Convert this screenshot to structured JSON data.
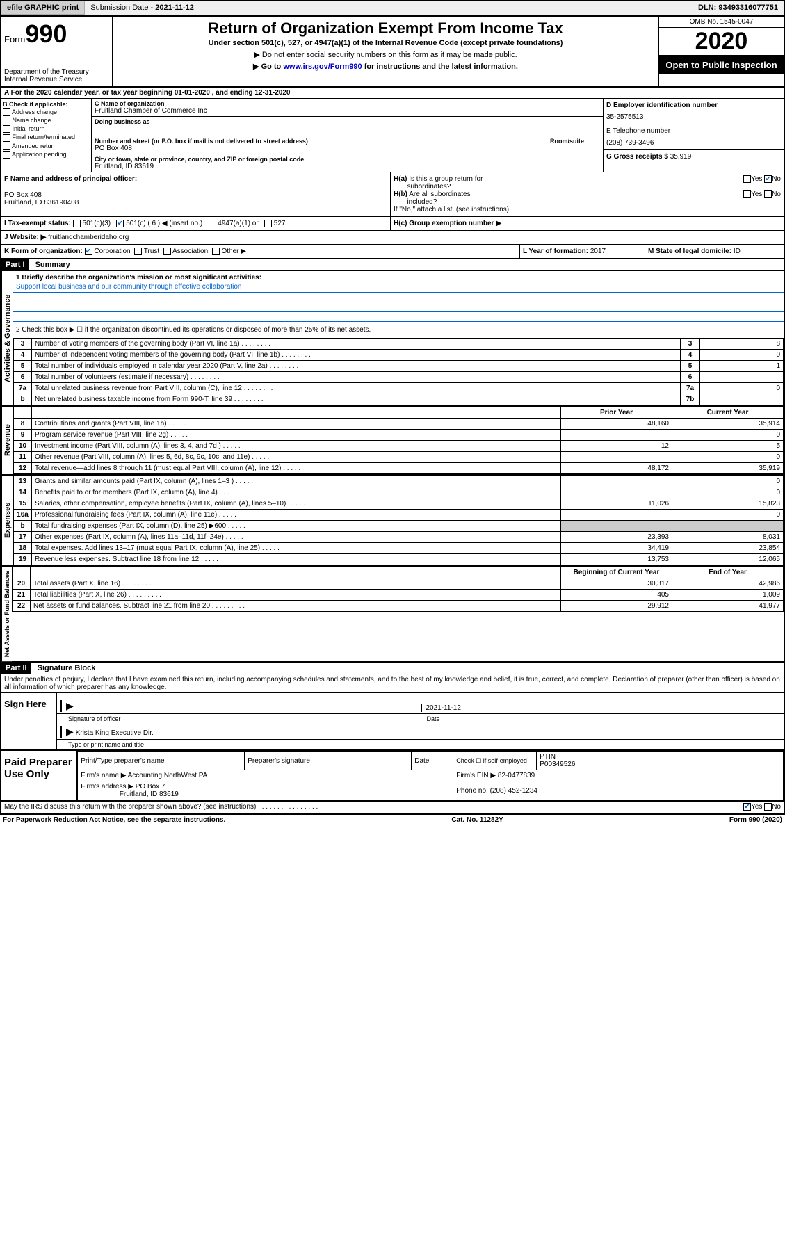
{
  "topbar": {
    "efile": "efile GRAPHIC print",
    "submission_label": "Submission Date - ",
    "submission_date": "2021-11-12",
    "dln_label": "DLN: ",
    "dln": "93493316077751"
  },
  "header": {
    "form_label": "Form",
    "form_number": "990",
    "dept": "Department of the Treasury",
    "irs": "Internal Revenue Service",
    "title": "Return of Organization Exempt From Income Tax",
    "subtitle": "Under section 501(c), 527, or 4947(a)(1) of the Internal Revenue Code (except private foundations)",
    "note1": "▶ Do not enter social security numbers on this form as it may be made public.",
    "note2_pre": "▶ Go to ",
    "note2_link": "www.irs.gov/Form990",
    "note2_post": " for instructions and the latest information.",
    "omb": "OMB No. 1545-0047",
    "year": "2020",
    "inspect": "Open to Public Inspection"
  },
  "row_a": "A For the 2020 calendar year, or tax year beginning 01-01-2020   , and ending 12-31-2020",
  "section_b": {
    "label": "B Check if applicable:",
    "items": [
      "Address change",
      "Name change",
      "Initial return",
      "Final return/terminated",
      "Amended return",
      "Application pending"
    ],
    "c_label": "C Name of organization",
    "c_name": "Fruitland Chamber of Commerce Inc",
    "dba_label": "Doing business as",
    "dba": "",
    "addr_label": "Number and street (or P.O. box if mail is not delivered to street address)",
    "room_label": "Room/suite",
    "addr": "PO Box 408",
    "city_label": "City or town, state or province, country, and ZIP or foreign postal code",
    "city": "Fruitland, ID  83619",
    "d_label": "D Employer identification number",
    "d_ein": "35-2575513",
    "e_label": "E Telephone number",
    "e_phone": "(208) 739-3496",
    "g_label": "G Gross receipts $ ",
    "g_amount": "35,919"
  },
  "section_f": {
    "f_label": "F Name and address of principal officer:",
    "f_name": "",
    "f_addr1": "PO Box 408",
    "f_addr2": "Fruitland, ID  836190408",
    "ha_label": "H(a)  Is this a group return for subordinates?",
    "ha_no": true,
    "hb_label": "H(b)  Are all subordinates included?",
    "hb_note": "If \"No,\" attach a list. (see instructions)",
    "hc_label": "H(c)  Group exemption number ▶"
  },
  "section_i": {
    "label": "I  Tax-exempt status:",
    "opts": [
      "501(c)(3)",
      "501(c) ( 6 ) ◀ (insert no.)",
      "4947(a)(1) or",
      "527"
    ],
    "checked_index": 1
  },
  "section_j": {
    "label": "J  Website: ▶",
    "value": "fruitlandchamberidaho.org"
  },
  "section_k": {
    "label": "K Form of organization:",
    "opts": [
      "Corporation",
      "Trust",
      "Association",
      "Other ▶"
    ],
    "checked_index": 0,
    "l_label": "L Year of formation: ",
    "l_val": "2017",
    "m_label": "M State of legal domicile: ",
    "m_val": "ID"
  },
  "part1": {
    "header": "Part I",
    "title": "Summary",
    "line1_label": "1  Briefly describe the organization's mission or most significant activities:",
    "line1_text": "Support local business and our community through effective collaboration",
    "line2": "2   Check this box ▶ ☐  if the organization discontinued its operations or disposed of more than 25% of its net assets."
  },
  "governance": {
    "side": "Activities & Governance",
    "rows": [
      {
        "n": "3",
        "desc": "Number of voting members of the governing body (Part VI, line 1a)",
        "r": "3",
        "v": "8"
      },
      {
        "n": "4",
        "desc": "Number of independent voting members of the governing body (Part VI, line 1b)",
        "r": "4",
        "v": "0"
      },
      {
        "n": "5",
        "desc": "Total number of individuals employed in calendar year 2020 (Part V, line 2a)",
        "r": "5",
        "v": "1"
      },
      {
        "n": "6",
        "desc": "Total number of volunteers (estimate if necessary)",
        "r": "6",
        "v": ""
      },
      {
        "n": "7a",
        "desc": "Total unrelated business revenue from Part VIII, column (C), line 12",
        "r": "7a",
        "v": "0"
      },
      {
        "n": "b",
        "desc": "Net unrelated business taxable income from Form 990-T, line 39",
        "r": "7b",
        "v": ""
      }
    ]
  },
  "revenue": {
    "side": "Revenue",
    "header_prior": "Prior Year",
    "header_current": "Current Year",
    "rows": [
      {
        "n": "8",
        "desc": "Contributions and grants (Part VIII, line 1h)",
        "p": "48,160",
        "c": "35,914"
      },
      {
        "n": "9",
        "desc": "Program service revenue (Part VIII, line 2g)",
        "p": "",
        "c": "0"
      },
      {
        "n": "10",
        "desc": "Investment income (Part VIII, column (A), lines 3, 4, and 7d )",
        "p": "12",
        "c": "5"
      },
      {
        "n": "11",
        "desc": "Other revenue (Part VIII, column (A), lines 5, 6d, 8c, 9c, 10c, and 11e)",
        "p": "",
        "c": "0"
      },
      {
        "n": "12",
        "desc": "Total revenue—add lines 8 through 11 (must equal Part VIII, column (A), line 12)",
        "p": "48,172",
        "c": "35,919"
      }
    ]
  },
  "expenses": {
    "side": "Expenses",
    "rows": [
      {
        "n": "13",
        "desc": "Grants and similar amounts paid (Part IX, column (A), lines 1–3 )",
        "p": "",
        "c": "0"
      },
      {
        "n": "14",
        "desc": "Benefits paid to or for members (Part IX, column (A), line 4)",
        "p": "",
        "c": "0"
      },
      {
        "n": "15",
        "desc": "Salaries, other compensation, employee benefits (Part IX, column (A), lines 5–10)",
        "p": "11,026",
        "c": "15,823"
      },
      {
        "n": "16a",
        "desc": "Professional fundraising fees (Part IX, column (A), line 11e)",
        "p": "",
        "c": "0"
      },
      {
        "n": "b",
        "desc": "Total fundraising expenses (Part IX, column (D), line 25) ▶600",
        "p": "SHADE",
        "c": "SHADE"
      },
      {
        "n": "17",
        "desc": "Other expenses (Part IX, column (A), lines 11a–11d, 11f–24e)",
        "p": "23,393",
        "c": "8,031"
      },
      {
        "n": "18",
        "desc": "Total expenses. Add lines 13–17 (must equal Part IX, column (A), line 25)",
        "p": "34,419",
        "c": "23,854"
      },
      {
        "n": "19",
        "desc": "Revenue less expenses. Subtract line 18 from line 12",
        "p": "13,753",
        "c": "12,065"
      }
    ]
  },
  "netassets": {
    "side": "Net Assets or Fund Balances",
    "header_begin": "Beginning of Current Year",
    "header_end": "End of Year",
    "rows": [
      {
        "n": "20",
        "desc": "Total assets (Part X, line 16)",
        "p": "30,317",
        "c": "42,986"
      },
      {
        "n": "21",
        "desc": "Total liabilities (Part X, line 26)",
        "p": "405",
        "c": "1,009"
      },
      {
        "n": "22",
        "desc": "Net assets or fund balances. Subtract line 21 from line 20",
        "p": "29,912",
        "c": "41,977"
      }
    ]
  },
  "part2": {
    "header": "Part II",
    "title": "Signature Block",
    "declaration": "Under penalties of perjury, I declare that I have examined this return, including accompanying schedules and statements, and to the best of my knowledge and belief, it is true, correct, and complete. Declaration of preparer (other than officer) is based on all information of which preparer has any knowledge."
  },
  "sign": {
    "label": "Sign Here",
    "sig_label": "Signature of officer",
    "date": "2021-11-12",
    "date_label": "Date",
    "name": "Krista King  Executive Dir.",
    "name_label": "Type or print name and title"
  },
  "preparer": {
    "label": "Paid Preparer Use Only",
    "h1": "Print/Type preparer's name",
    "h2": "Preparer's signature",
    "h3": "Date",
    "h4_pre": "Check ☐ if self-employed",
    "h5": "PTIN",
    "ptin": "P00349526",
    "firm_label": "Firm's name    ▶",
    "firm": "Accounting NorthWest PA",
    "ein_label": "Firm's EIN ▶",
    "ein": "82-0477839",
    "addr_label": "Firm's address ▶",
    "addr1": "PO Box 7",
    "addr2": "Fruitland, ID  83619",
    "phone_label": "Phone no. ",
    "phone": "(208) 452-1234"
  },
  "discuss": {
    "text": "May the IRS discuss this return with the preparer shown above? (see instructions)",
    "yes": true
  },
  "footer": {
    "left": "For Paperwork Reduction Act Notice, see the separate instructions.",
    "mid": "Cat. No. 11282Y",
    "right": "Form 990 (2020)"
  }
}
